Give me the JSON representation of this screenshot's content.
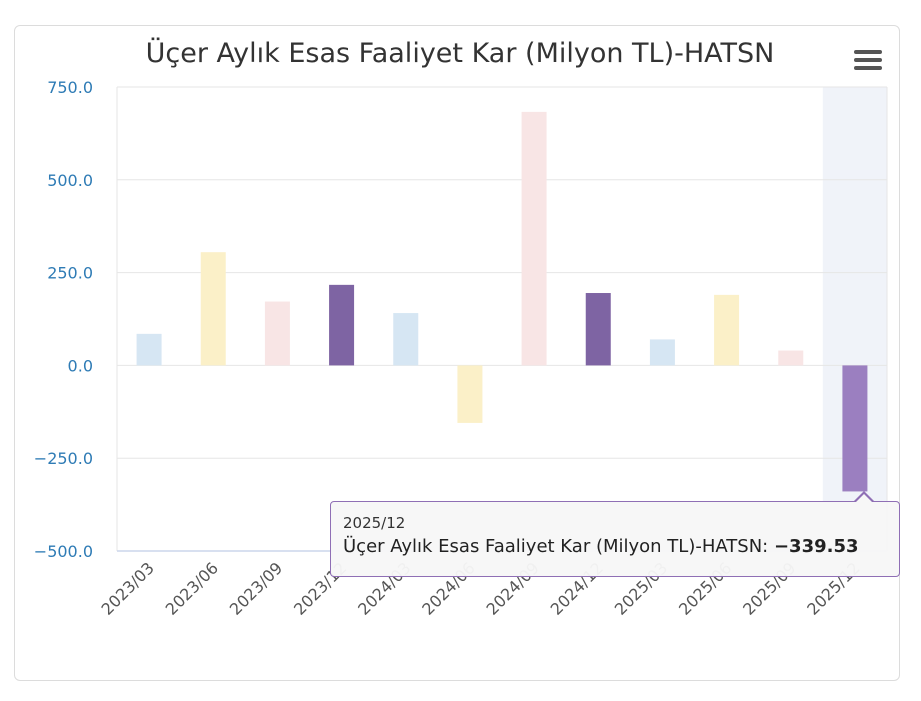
{
  "chart_data": {
    "type": "bar",
    "title": "Üçer Aylık Esas Faaliyet Kar (Milyon TL)-HATSN",
    "categories": [
      "2023/03",
      "2023/06",
      "2023/09",
      "2023/12",
      "2024/03",
      "2024/06",
      "2024/09",
      "2024/12",
      "2025/03",
      "2025/06",
      "2025/09",
      "2025/12"
    ],
    "values": [
      85,
      305,
      172,
      217,
      141,
      -155,
      683,
      195,
      70,
      190,
      40,
      -339.53
    ],
    "bar_colors": [
      "#d6e6f3",
      "#fbf0c8",
      "#f8e5e5",
      "#7e64a3",
      "#d6e6f3",
      "#fbf0c8",
      "#f8e5e5",
      "#7e64a3",
      "#d6e6f3",
      "#fbf0c8",
      "#f8e5e5",
      "#9b7fc0"
    ],
    "ylim": [
      -500,
      750
    ],
    "yticks": [
      750,
      500,
      250,
      0,
      -250,
      -500
    ],
    "ytick_labels": [
      "750.0",
      "500.0",
      "250.0",
      "0.0",
      "−250.0",
      "−500.0"
    ],
    "xlabel": "",
    "ylabel": "",
    "grid": true,
    "highlighted_category": "2025/12"
  },
  "tooltip": {
    "date": "2025/12",
    "label": "Üçer Aylık Esas Faaliyet Kar (Milyon TL)-HATSN: ",
    "value": "−339.53"
  },
  "menu_icon": "hamburger-menu-icon"
}
